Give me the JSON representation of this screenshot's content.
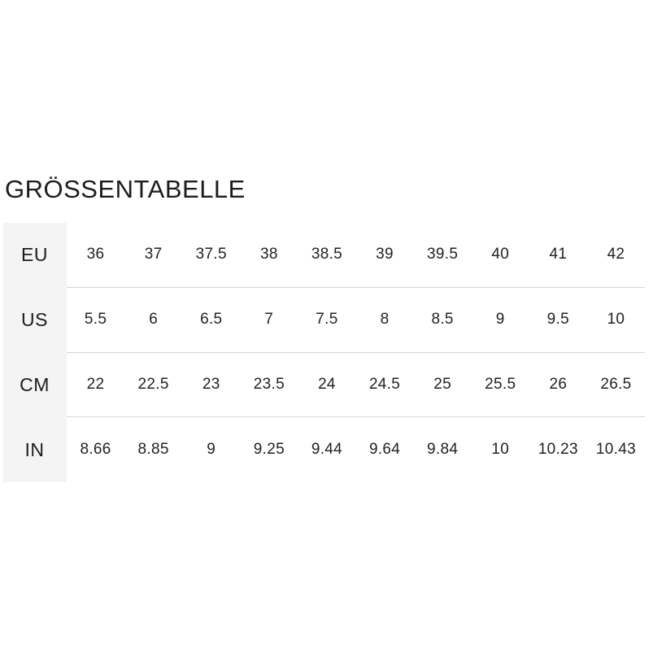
{
  "title": "GRÖSSENTABELLE",
  "colors": {
    "page_background": "#ffffff",
    "label_column_background": "#f4f4f4",
    "row_separator": "#d6d6d6",
    "text": "#1e1e1e"
  },
  "table": {
    "rows": [
      {
        "label": "EU",
        "values": [
          "36",
          "37",
          "37.5",
          "38",
          "38.5",
          "39",
          "39.5",
          "40",
          "41",
          "42"
        ]
      },
      {
        "label": "US",
        "values": [
          "5.5",
          "6",
          "6.5",
          "7",
          "7.5",
          "8",
          "8.5",
          "9",
          "9.5",
          "10"
        ]
      },
      {
        "label": "CM",
        "values": [
          "22",
          "22.5",
          "23",
          "23.5",
          "24",
          "24.5",
          "25",
          "25.5",
          "26",
          "26.5"
        ]
      },
      {
        "label": "IN",
        "values": [
          "8.66",
          "8.85",
          "9",
          "9.25",
          "9.44",
          "9.64",
          "9.84",
          "10",
          "10.23",
          "10.43"
        ]
      }
    ]
  },
  "chart_data": {
    "type": "table",
    "title": "GRÖSSENTABELLE",
    "row_headers": [
      "EU",
      "US",
      "CM",
      "IN"
    ],
    "rows": [
      [
        36,
        37,
        37.5,
        38,
        38.5,
        39,
        39.5,
        40,
        41,
        42
      ],
      [
        5.5,
        6,
        6.5,
        7,
        7.5,
        8,
        8.5,
        9,
        9.5,
        10
      ],
      [
        22,
        22.5,
        23,
        23.5,
        24,
        24.5,
        25,
        25.5,
        26,
        26.5
      ],
      [
        8.66,
        8.85,
        9,
        9.25,
        9.44,
        9.64,
        9.84,
        10,
        10.23,
        10.43
      ]
    ]
  }
}
